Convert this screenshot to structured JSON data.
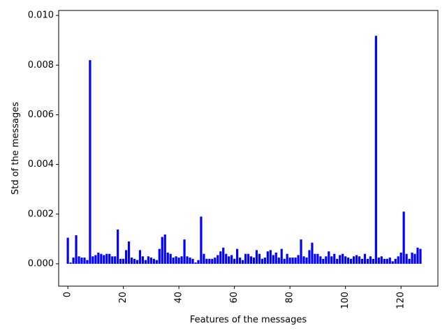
{
  "chart_data": {
    "type": "bar",
    "xlabel": "Features of the messages",
    "ylabel": "Std of the messages",
    "xlim": [
      -3.3,
      133.3
    ],
    "ylim": [
      -0.0009,
      0.0102
    ],
    "xticks": [
      0,
      20,
      40,
      60,
      80,
      100,
      120
    ],
    "xtick_labels": [
      "0",
      "20",
      "40",
      "60",
      "80",
      "100",
      "120"
    ],
    "xtick_rotation": 90,
    "yticks": [
      0.0,
      0.002,
      0.004,
      0.006,
      0.008,
      0.01
    ],
    "ytick_labels": [
      "0.000",
      "0.002",
      "0.004",
      "0.006",
      "0.008",
      "0.010"
    ],
    "bar_color": "#0000ff",
    "grid": false,
    "x": [
      0,
      1,
      2,
      3,
      4,
      5,
      6,
      7,
      8,
      9,
      10,
      11,
      12,
      13,
      14,
      15,
      16,
      17,
      18,
      19,
      20,
      21,
      22,
      23,
      24,
      25,
      26,
      27,
      28,
      29,
      30,
      31,
      32,
      33,
      34,
      35,
      36,
      37,
      38,
      39,
      40,
      41,
      42,
      43,
      44,
      45,
      46,
      47,
      48,
      49,
      50,
      51,
      52,
      53,
      54,
      55,
      56,
      57,
      58,
      59,
      60,
      61,
      62,
      63,
      64,
      65,
      66,
      67,
      68,
      69,
      70,
      71,
      72,
      73,
      74,
      75,
      76,
      77,
      78,
      79,
      80,
      81,
      82,
      83,
      84,
      85,
      86,
      87,
      88,
      89,
      90,
      91,
      92,
      93,
      94,
      95,
      96,
      97,
      98,
      99,
      100,
      101,
      102,
      103,
      104,
      105,
      106,
      107,
      108,
      109,
      110,
      111,
      112,
      113,
      114,
      115,
      116,
      117,
      118,
      119,
      120,
      121,
      122,
      123,
      124,
      125,
      126,
      127
    ],
    "values": [
      0.00105,
      5e-05,
      0.00025,
      0.00115,
      0.0003,
      0.00025,
      0.00025,
      0.00015,
      0.0082,
      0.0003,
      0.00035,
      0.00045,
      0.0004,
      0.00035,
      0.0004,
      0.0004,
      0.0003,
      0.0003,
      0.00138,
      0.0002,
      0.0002,
      0.00055,
      0.0009,
      0.00025,
      0.0002,
      0.00015,
      0.00055,
      0.0003,
      0.00015,
      0.0003,
      0.00025,
      0.0002,
      0.00015,
      0.0006,
      0.00108,
      0.00118,
      0.00045,
      0.0004,
      0.00025,
      0.0003,
      0.00025,
      0.0003,
      0.00098,
      0.0003,
      0.00025,
      0.0002,
      5e-05,
      0.00015,
      0.0019,
      0.0004,
      0.0002,
      0.0002,
      0.0002,
      0.00025,
      0.00035,
      0.0005,
      0.00065,
      0.0004,
      0.0003,
      0.00035,
      0.0002,
      0.0006,
      0.00025,
      0.00015,
      0.0004,
      0.0004,
      0.0003,
      0.00025,
      0.00055,
      0.0004,
      0.0002,
      0.00025,
      0.0005,
      0.00055,
      0.00035,
      0.00045,
      0.00025,
      0.0006,
      0.0002,
      0.0004,
      0.00025,
      0.00025,
      0.00025,
      0.00035,
      0.00098,
      0.0003,
      0.00025,
      0.00055,
      0.00085,
      0.0004,
      0.0004,
      0.0003,
      0.0002,
      0.0003,
      0.0005,
      0.0003,
      0.0004,
      0.0002,
      0.00035,
      0.0004,
      0.0003,
      0.00025,
      0.0002,
      0.0003,
      0.00035,
      0.0003,
      0.0002,
      0.0004,
      0.0002,
      0.0003,
      0.0002,
      0.00918,
      0.00025,
      0.0003,
      0.0002,
      0.0002,
      0.00025,
      0.0001,
      0.0002,
      0.0003,
      0.00045,
      0.0021,
      0.0004,
      0.0002,
      0.00045,
      0.0004,
      0.00065,
      0.0006
    ]
  }
}
